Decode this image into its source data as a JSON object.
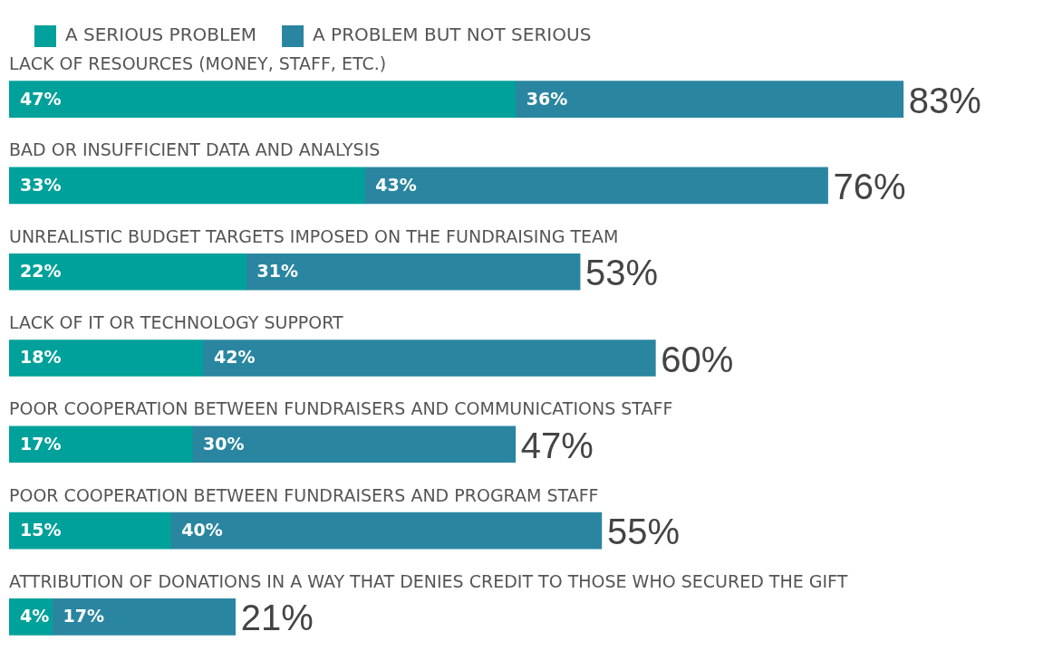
{
  "chart_data": {
    "type": "bar",
    "orientation": "horizontal",
    "stacked": true,
    "categories": [
      "LACK OF RESOURCES (MONEY, STAFF, ETC.)",
      "BAD OR INSUFFICIENT DATA AND ANALYSIS",
      "UNREALISTIC BUDGET TARGETS IMPOSED ON THE FUNDRAISING TEAM",
      "LACK OF IT OR TECHNOLOGY SUPPORT",
      "POOR COOPERATION BETWEEN FUNDRAISERS AND COMMUNICATIONS STAFF",
      "POOR COOPERATION BETWEEN FUNDRAISERS AND PROGRAM STAFF",
      "ATTRIBUTION OF DONATIONS IN A WAY THAT DENIES CREDIT TO THOSE WHO SECURED THE GIFT"
    ],
    "series": [
      {
        "name": "A SERIOUS PROBLEM",
        "color": "#00a19a",
        "values": [
          47,
          33,
          22,
          18,
          17,
          15,
          4
        ],
        "value_labels": [
          "47%",
          "33%",
          "22%",
          "18%",
          "17%",
          "15%",
          "4%"
        ]
      },
      {
        "name": "A PROBLEM BUT NOT SERIOUS",
        "color": "#2a86a0",
        "values": [
          36,
          43,
          31,
          42,
          30,
          40,
          17
        ],
        "value_labels": [
          "36%",
          "43%",
          "31%",
          "42%",
          "30%",
          "40%",
          "17%"
        ]
      }
    ],
    "totals": [
      "83%",
      "76%",
      "53%",
      "60%",
      "47%",
      "55%",
      "21%"
    ],
    "legend": "top left"
  }
}
